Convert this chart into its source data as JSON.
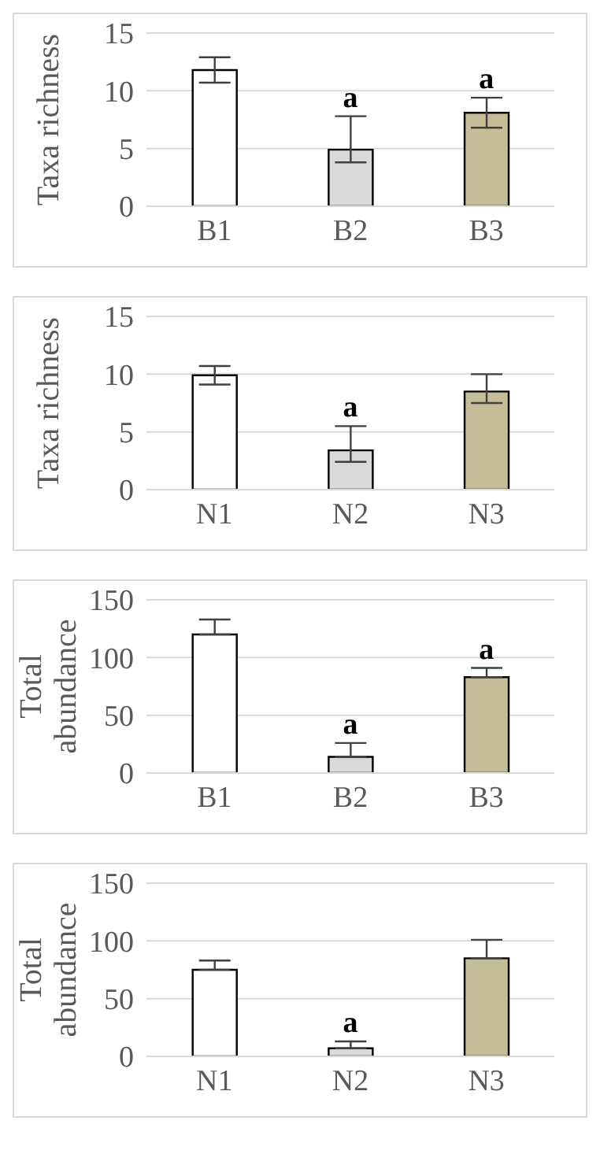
{
  "chart_data": [
    {
      "type": "bar",
      "ylabel": "Taxa richness",
      "categories": [
        "B1",
        "B2",
        "B3"
      ],
      "values": [
        11.8,
        4.9,
        8.1
      ],
      "colors": [
        "#ffffff",
        "#d9d9d9",
        "#c4bd97"
      ],
      "errors": [
        1.1,
        [
          3.8,
          7.8
        ],
        1.3
      ],
      "ylim": [
        0,
        15
      ],
      "yticks": [
        0,
        5,
        10,
        15
      ],
      "grid": "y",
      "annotations": [
        {
          "text": "a",
          "x": "B2",
          "y": 7.8
        },
        {
          "text": "a",
          "x": "B3",
          "y": 9.4
        }
      ]
    },
    {
      "type": "bar",
      "ylabel": "Taxa richness",
      "categories": [
        "N1",
        "N2",
        "N3"
      ],
      "values": [
        9.9,
        3.4,
        8.5
      ],
      "colors": [
        "#ffffff",
        "#d9d9d9",
        "#c4bd97"
      ],
      "errors": [
        0.8,
        [
          2.4,
          5.5
        ],
        [
          7.5,
          10.0
        ]
      ],
      "ylim": [
        0,
        15
      ],
      "yticks": [
        0,
        5,
        10,
        15
      ],
      "grid": "y",
      "annotations": [
        {
          "text": "a",
          "x": "N2",
          "y": 5.5
        }
      ]
    },
    {
      "type": "bar",
      "ylabel": "Total abundance",
      "categories": [
        "B1",
        "B2",
        "B3"
      ],
      "values": [
        120,
        14,
        83
      ],
      "colors": [
        "#ffffff",
        "#d9d9d9",
        "#c4bd97"
      ],
      "errors": [
        [
          120,
          133
        ],
        [
          14,
          26
        ],
        [
          83,
          91
        ]
      ],
      "ylim": [
        0,
        150
      ],
      "yticks": [
        0,
        50,
        100,
        150
      ],
      "grid": "y",
      "annotations": [
        {
          "text": "a",
          "x": "B2",
          "y": 26
        },
        {
          "text": "a",
          "x": "B3",
          "y": 91
        }
      ]
    },
    {
      "type": "bar",
      "ylabel": "Total abundance",
      "categories": [
        "N1",
        "N2",
        "N3"
      ],
      "values": [
        75,
        7,
        85
      ],
      "colors": [
        "#ffffff",
        "#d9d9d9",
        "#c4bd97"
      ],
      "errors": [
        [
          75,
          83
        ],
        [
          7,
          13
        ],
        [
          85,
          101
        ]
      ],
      "ylim": [
        0,
        150
      ],
      "yticks": [
        0,
        50,
        100,
        150
      ],
      "grid": "y",
      "annotations": [
        {
          "text": "a",
          "x": "N2",
          "y": 13
        }
      ]
    }
  ]
}
